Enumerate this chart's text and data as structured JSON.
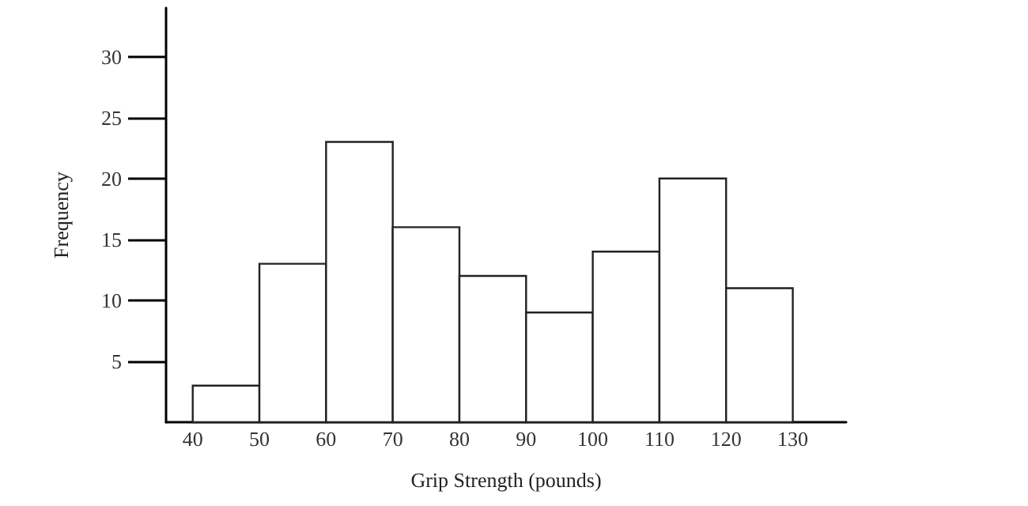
{
  "chart_data": {
    "type": "histogram",
    "xlabel": "Grip Strength (pounds)",
    "ylabel": "Frequency",
    "bins": [
      40,
      50,
      60,
      70,
      80,
      90,
      100,
      110,
      120,
      130
    ],
    "values": [
      3,
      13,
      23,
      16,
      12,
      9,
      14,
      20,
      11
    ],
    "color": "#ffffff",
    "xlim": [
      36,
      138
    ],
    "xticks": [
      40,
      50,
      60,
      70,
      80,
      90,
      100,
      110,
      120,
      130
    ],
    "ylim": [
      0,
      34
    ],
    "yticks": [
      5,
      10,
      15,
      20,
      25,
      30
    ],
    "grid": false
  }
}
